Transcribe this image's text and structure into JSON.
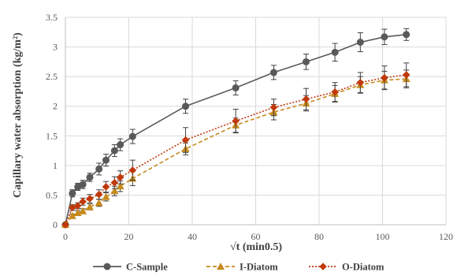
{
  "chart_data": {
    "type": "line",
    "title": "",
    "xlabel": "√t (min0.5)",
    "ylabel": "Capillary water absorption (kg/m²)",
    "xlim": [
      0,
      120
    ],
    "ylim": [
      0,
      3.5
    ],
    "x_ticks": [
      0,
      20,
      40,
      60,
      80,
      100,
      120
    ],
    "y_ticks": [
      0,
      0.5,
      1,
      1.5,
      2,
      2.5,
      3,
      3.5
    ],
    "grid": true,
    "legend_position": "bottom",
    "series": [
      {
        "name": "C-Sample",
        "color": "#595959",
        "line": "solid",
        "marker": "circle",
        "points": [
          {
            "x": 0,
            "y": 0.0,
            "err": 0.02
          },
          {
            "x": 2.2,
            "y": 0.53,
            "err": 0.06
          },
          {
            "x": 3.9,
            "y": 0.64,
            "err": 0.06
          },
          {
            "x": 5.5,
            "y": 0.68,
            "err": 0.07
          },
          {
            "x": 7.7,
            "y": 0.8,
            "err": 0.07
          },
          {
            "x": 10.6,
            "y": 0.94,
            "err": 0.1
          },
          {
            "x": 12.8,
            "y": 1.09,
            "err": 0.1
          },
          {
            "x": 15.5,
            "y": 1.25,
            "err": 0.1
          },
          {
            "x": 17.3,
            "y": 1.35,
            "err": 0.1
          },
          {
            "x": 21.2,
            "y": 1.49,
            "err": 0.12
          },
          {
            "x": 37.9,
            "y": 2.0,
            "err": 0.12
          },
          {
            "x": 53.7,
            "y": 2.31,
            "err": 0.12
          },
          {
            "x": 65.7,
            "y": 2.57,
            "err": 0.12
          },
          {
            "x": 75.9,
            "y": 2.75,
            "err": 0.13
          },
          {
            "x": 85.0,
            "y": 2.91,
            "err": 0.15
          },
          {
            "x": 93.0,
            "y": 3.08,
            "err": 0.16
          },
          {
            "x": 100.6,
            "y": 3.17,
            "err": 0.13
          },
          {
            "x": 107.5,
            "y": 3.21,
            "err": 0.1
          }
        ]
      },
      {
        "name": "I-Diatom",
        "color": "#C68A1C",
        "line": "dashed",
        "marker": "triangle",
        "points": [
          {
            "x": 0,
            "y": 0.0,
            "err": 0.02
          },
          {
            "x": 2.2,
            "y": 0.15,
            "err": 0.03
          },
          {
            "x": 3.9,
            "y": 0.2,
            "err": 0.04
          },
          {
            "x": 5.5,
            "y": 0.23,
            "err": 0.04
          },
          {
            "x": 7.7,
            "y": 0.3,
            "err": 0.05
          },
          {
            "x": 10.6,
            "y": 0.37,
            "err": 0.06
          },
          {
            "x": 12.8,
            "y": 0.47,
            "err": 0.07
          },
          {
            "x": 15.5,
            "y": 0.57,
            "err": 0.08
          },
          {
            "x": 17.3,
            "y": 0.65,
            "err": 0.09
          },
          {
            "x": 21.2,
            "y": 0.78,
            "err": 0.12
          },
          {
            "x": 37.9,
            "y": 1.28,
            "err": 0.1
          },
          {
            "x": 53.7,
            "y": 1.68,
            "err": 0.12
          },
          {
            "x": 65.7,
            "y": 1.9,
            "err": 0.13
          },
          {
            "x": 75.9,
            "y": 2.05,
            "err": 0.13
          },
          {
            "x": 85.0,
            "y": 2.21,
            "err": 0.14
          },
          {
            "x": 93.0,
            "y": 2.36,
            "err": 0.14
          },
          {
            "x": 100.6,
            "y": 2.44,
            "err": 0.15
          },
          {
            "x": 107.5,
            "y": 2.46,
            "err": 0.15
          }
        ]
      },
      {
        "name": "O-Diatom",
        "color": "#C0390B",
        "line": "dotted",
        "marker": "diamond",
        "points": [
          {
            "x": 0,
            "y": 0.0,
            "err": 0.02
          },
          {
            "x": 2.2,
            "y": 0.29,
            "err": 0.05
          },
          {
            "x": 3.9,
            "y": 0.32,
            "err": 0.05
          },
          {
            "x": 5.5,
            "y": 0.39,
            "err": 0.06
          },
          {
            "x": 7.7,
            "y": 0.44,
            "err": 0.07
          },
          {
            "x": 10.6,
            "y": 0.51,
            "err": 0.08
          },
          {
            "x": 12.8,
            "y": 0.64,
            "err": 0.09
          },
          {
            "x": 15.5,
            "y": 0.71,
            "err": 0.1
          },
          {
            "x": 17.3,
            "y": 0.8,
            "err": 0.11
          },
          {
            "x": 21.2,
            "y": 0.92,
            "err": 0.17
          },
          {
            "x": 37.9,
            "y": 1.43,
            "err": 0.21
          },
          {
            "x": 53.7,
            "y": 1.75,
            "err": 0.2
          },
          {
            "x": 65.7,
            "y": 1.98,
            "err": 0.14
          },
          {
            "x": 75.9,
            "y": 2.12,
            "err": 0.18
          },
          {
            "x": 85.0,
            "y": 2.24,
            "err": 0.16
          },
          {
            "x": 93.0,
            "y": 2.4,
            "err": 0.17
          },
          {
            "x": 100.6,
            "y": 2.48,
            "err": 0.2
          },
          {
            "x": 107.5,
            "y": 2.53,
            "err": 0.2
          }
        ]
      }
    ]
  }
}
